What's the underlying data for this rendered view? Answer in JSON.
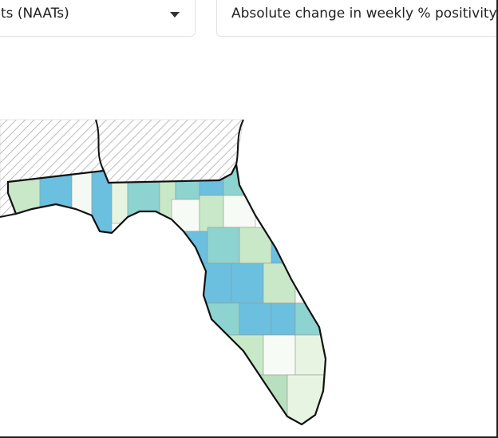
{
  "dropdowns": [
    {
      "label": "ts (NAATs)"
    },
    {
      "label": "Absolute change in weekly % positivity"
    }
  ]
}
